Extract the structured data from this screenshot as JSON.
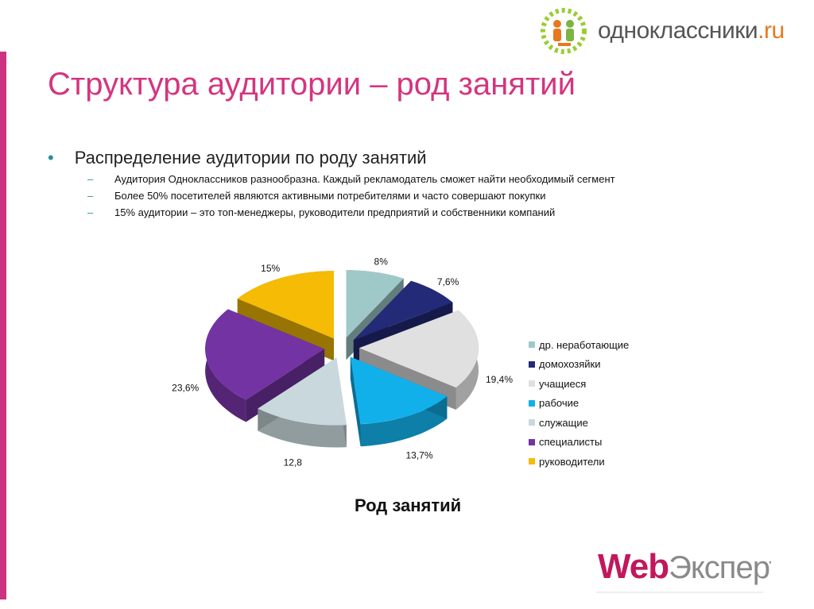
{
  "header": {
    "logo_brand": "одноклассники",
    "logo_tld": ".ru"
  },
  "title": "Структура аудитории – род занятий",
  "bullet": {
    "main": "Распределение аудитории по роду занятий",
    "subs": [
      "Аудитория Одноклассников разнообразна. Каждый рекламодатель сможет найти необходимый сегмент",
      "Более 50% посетителей являются активными потребителями и часто совершают покупки",
      "15% аудитории – это топ-менеджеры, руководители предприятий и собственники компаний"
    ]
  },
  "footer_logo": "WebЭксперт",
  "colors": {
    "accent": "#d4357f",
    "bullet": "#2b8f8f",
    "brand_orange": "#e8781e"
  },
  "chart_data": {
    "type": "pie",
    "title": "Род занятий",
    "legend_position": "right",
    "slices": [
      {
        "name": "др. неработающие",
        "value": 8,
        "label": "8%",
        "color": "#9fc9c9"
      },
      {
        "name": "домохозяйки",
        "value": 7.6,
        "label": "7,6%",
        "color": "#232a78"
      },
      {
        "name": "учащиеся",
        "value": 19.4,
        "label": "19,4%",
        "color": "#e0e0e0"
      },
      {
        "name": "рабочие",
        "value": 13.7,
        "label": "13,7%",
        "color": "#12b0ea"
      },
      {
        "name": "служащие",
        "value": 12.8,
        "label": "12,8",
        "color": "#c9d8dd"
      },
      {
        "name": "специалисты",
        "value": 23.6,
        "label": "23,6%",
        "color": "#7433a3"
      },
      {
        "name": "руководители",
        "value": 15,
        "label": "15%",
        "color": "#f5bb05"
      }
    ]
  }
}
